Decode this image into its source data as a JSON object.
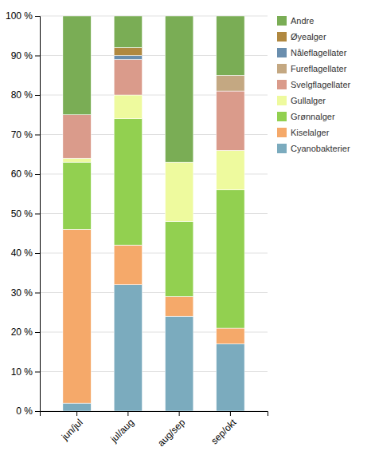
{
  "chart_data": {
    "type": "bar",
    "stacked": true,
    "grid": true,
    "legend": "right",
    "categories": [
      "jun/jul",
      "jul/aug",
      "aug/sep",
      "sep/okt"
    ],
    "series": [
      {
        "name": "Cyanobakterier",
        "color": "#7BABBE",
        "values": [
          2,
          32,
          24,
          17
        ]
      },
      {
        "name": "Kiselalger",
        "color": "#F5A96A",
        "values": [
          44,
          10,
          5,
          4
        ]
      },
      {
        "name": "Grønnalger",
        "color": "#92D050",
        "values": [
          17,
          32,
          19,
          35
        ]
      },
      {
        "name": "Gullalger",
        "color": "#EEFA9E",
        "values": [
          1,
          6,
          15,
          10
        ]
      },
      {
        "name": "Svelgflagellater",
        "color": "#DA9B8B",
        "values": [
          11,
          9,
          0,
          15
        ]
      },
      {
        "name": "Fureflagellater",
        "color": "#C4A882",
        "values": [
          0,
          0,
          0,
          4
        ]
      },
      {
        "name": "Nåleflagellater",
        "color": "#6A8EAE",
        "values": [
          0,
          1,
          0,
          0
        ]
      },
      {
        "name": "Øyealger",
        "color": "#B08840",
        "values": [
          0,
          2,
          0,
          0
        ]
      },
      {
        "name": "Andre",
        "color": "#7AAD55",
        "values": [
          25,
          8,
          37,
          15
        ]
      }
    ],
    "ylim": [
      0,
      100
    ],
    "yticks": [
      {
        "value": 0,
        "label": "0 %"
      },
      {
        "value": 10,
        "label": "10 %"
      },
      {
        "value": 20,
        "label": "20 %"
      },
      {
        "value": 30,
        "label": "30 %"
      },
      {
        "value": 40,
        "label": "40 %"
      },
      {
        "value": 50,
        "label": "50 %"
      },
      {
        "value": 60,
        "label": "60 %"
      },
      {
        "value": 70,
        "label": "70 %"
      },
      {
        "value": 80,
        "label": "80 %"
      },
      {
        "value": 90,
        "label": "90 %"
      },
      {
        "value": 100,
        "label": "100 %"
      }
    ]
  }
}
